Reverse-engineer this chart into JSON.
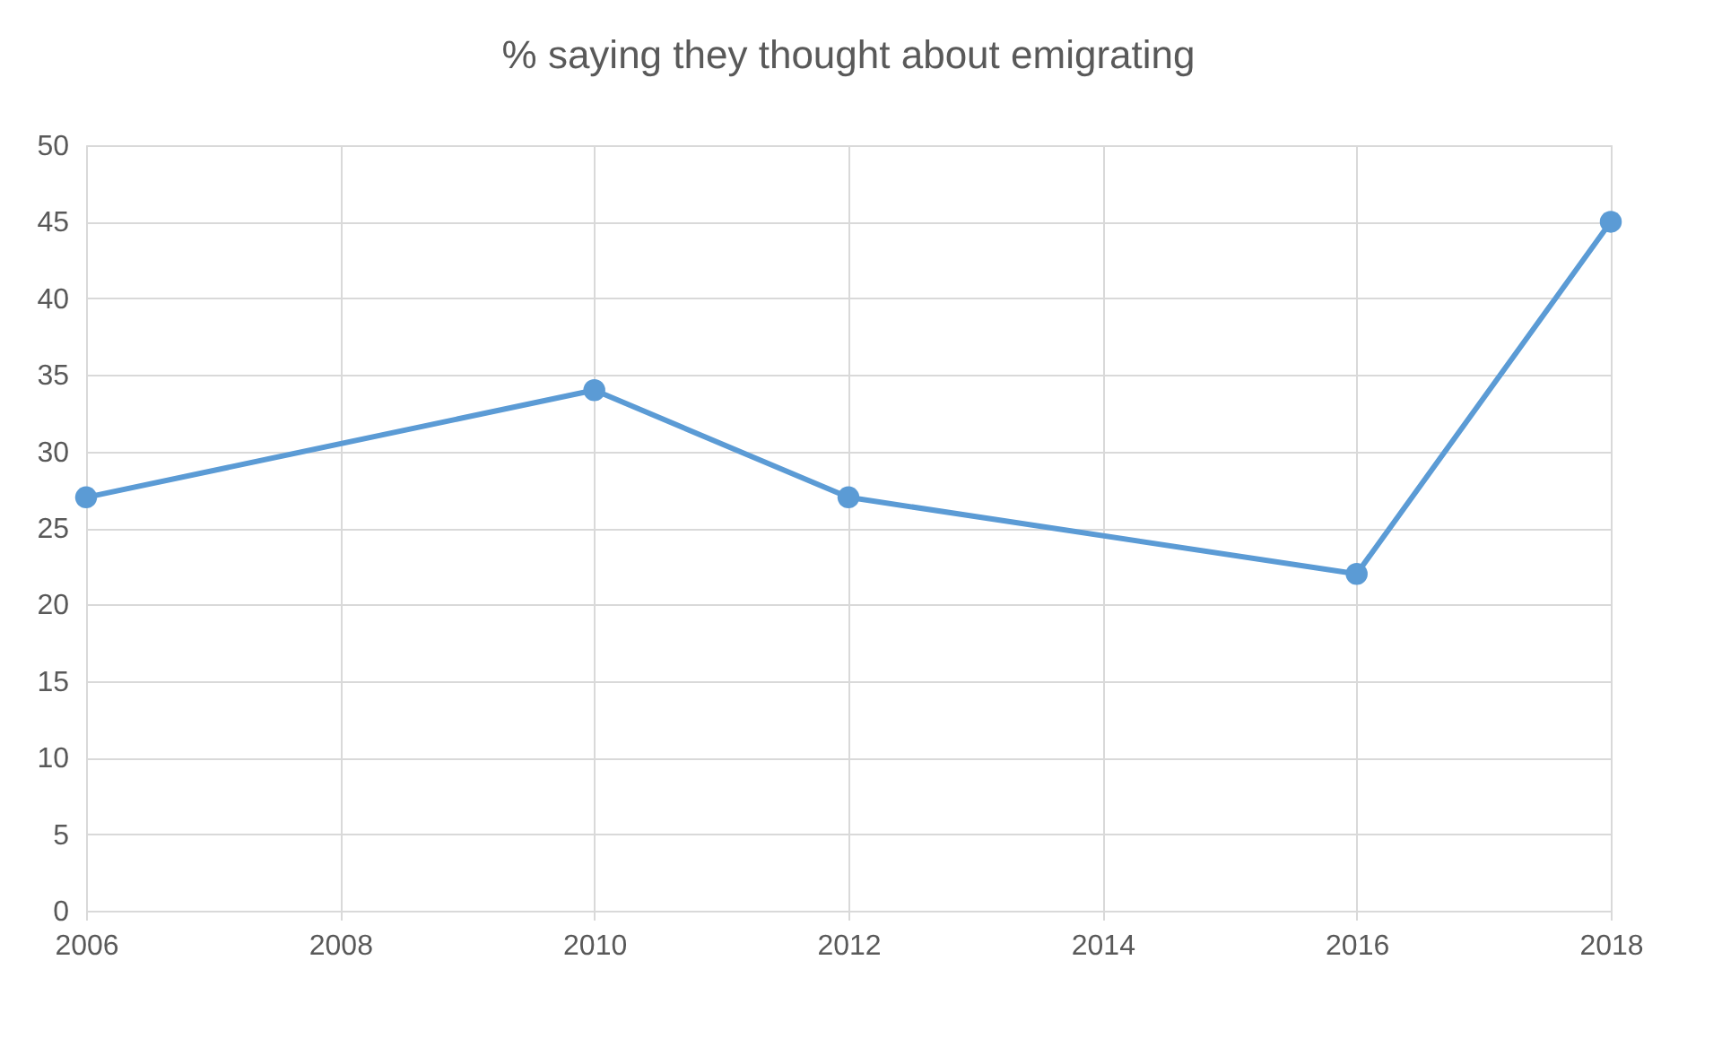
{
  "chart_data": {
    "type": "line",
    "title": "% saying they thought about emigrating",
    "x": [
      2006,
      2010,
      2012,
      2016,
      2018
    ],
    "series": [
      {
        "color": "#5b9bd5",
        "values": [
          27,
          34,
          27,
          22,
          45
        ]
      }
    ],
    "xlim": [
      2006,
      2018
    ],
    "xticks": [
      2006,
      2008,
      2010,
      2012,
      2014,
      2016,
      2018
    ],
    "ylim": [
      0,
      50
    ],
    "yticks": [
      0,
      5,
      10,
      15,
      20,
      25,
      30,
      35,
      40,
      45,
      50
    ],
    "grid": true,
    "marker": "circle",
    "line_style": "solid"
  }
}
